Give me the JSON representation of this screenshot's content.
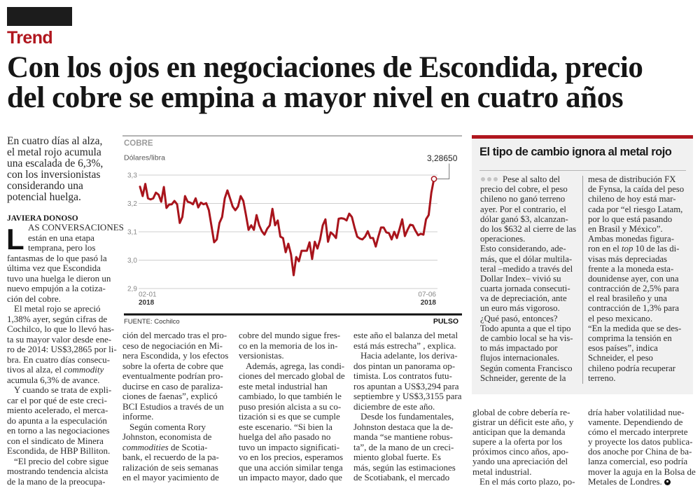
{
  "masthead": {
    "section": "Trend"
  },
  "headline": {
    "lines": [
      "Con los ojos en negociaciones de Escondida, precio",
      "del cobre se empina a mayor nivel en cuatro años"
    ]
  },
  "deck": [
    {
      "lines": [
        "En cuatro días al alza,",
        "el metal rojo acumula",
        "una escalada de 6,3%,",
        "con los inversionistas",
        "considerando una",
        "potencial huelga."
      ]
    }
  ],
  "byline": "JAVIERA DONOSO",
  "article": {
    "drop_cap": "L",
    "columns": [
      [
        {
          "dropcap": true,
          "lines": [
            "AS CONVERSACIONES",
            "están en una etapa",
            "temprana, pero los",
            "fantasmas de lo que pasó la",
            "última vez que Escondida",
            "tuvo una huelga le dieron un",
            "nuevo empujón a la cotiza-",
            "ción del cobre."
          ]
        },
        {
          "lines": [
            "El metal rojo se apreció",
            "1,38% ayer, según cifras de",
            "Cochilco, lo que lo llevó has-",
            "ta su mayor valor desde ene-",
            "ro de 2014: US$3,2865 por li-",
            "bra. En cuatro días consecu-",
            [
              {
                "t": "tivos al alza, el "
              },
              {
                "t": "commodity",
                "i": true
              }
            ],
            "acumula 6,3% de avance."
          ]
        },
        {
          "lines": [
            "Y cuando se trata de expli-",
            "car el por qué de este creci-",
            "miento acelerado, el merca-",
            "do apunta a la especulación",
            "en torno a las negociaciones",
            "con el sindicato de Minera",
            "Escondida, de HBP Billiton."
          ]
        },
        {
          "lines": [
            "“El precio del cobre sigue",
            "mostrando tendencia alcista",
            "de la mano de la preocupa-"
          ]
        }
      ],
      [
        {
          "cont": true,
          "lines": [
            "ción del mercado tras el pro-",
            "ceso de negociación en Mi-",
            "nera Escondida, y los efectos",
            "sobre la oferta de cobre que",
            "eventualmente podrían pro-",
            "ducirse en caso de paraliza-",
            "ciones de faenas”, explicó",
            "BCI Estudios a través de un",
            "informe."
          ]
        },
        {
          "lines": [
            "Según comenta Rory",
            "Johnston, economista de",
            [
              {
                "t": "commodities",
                "i": true
              },
              {
                "t": " de Scotia-"
              }
            ],
            "bank, el recuerdo de la pa-",
            "ralización de seis semanas",
            "en el mayor yacimiento de"
          ]
        }
      ],
      [
        {
          "cont": true,
          "lines": [
            "cobre del mundo sigue fres-",
            "co en la memoria de los in-",
            "versionistas."
          ]
        },
        {
          "lines": [
            "Además, agrega, las condi-",
            "ciones del mercado global de",
            "este metal industrial han",
            "cambiado, lo que también le",
            "puso presión alcista a su co-",
            "tización si es que se cumple",
            "este escenario. “Si bien la",
            "huelga del año pasado no",
            "tuvo un impacto significati-",
            "vo en los precios, esperamos",
            "que una acción similar tenga",
            "un impacto mayor, dado que"
          ]
        }
      ],
      [
        {
          "cont": true,
          "lines": [
            "este año el balanza del metal",
            "está más estrecha” , explica."
          ]
        },
        {
          "lines": [
            "Hacia adelante, los deriva-",
            "dos pintan un panorama op-",
            "timista. Los contratos futu-",
            "ros apuntan a US$3,294 para",
            "septiembre y US$3,3155 para",
            "diciembre de este año."
          ]
        },
        {
          "lines": [
            "Desde los fundamentales,",
            "Johnston destaca que la de-",
            "manda “se mantiene robus-",
            "ta”, de la mano de un creci-",
            "miento global fuerte. Es",
            "más, según las estimaciones",
            "de Scotiabank, el mercado"
          ]
        }
      ],
      [
        {
          "cont": true,
          "lines": [
            "global de cobre debería re-",
            "gistrar un déficit este año, y",
            "anticipan que la demanda",
            "supere a la oferta por los",
            "próximos cinco años, apo-",
            "yando una apreciación del",
            "metal industrial."
          ]
        },
        {
          "lines": [
            "En el más corto plazo, po-"
          ]
        }
      ],
      [
        {
          "cont": true,
          "lines": [
            "dría haber volatilidad nue-",
            "vamente. Dependiendo de",
            "cómo el mercado interprete",
            "y proyecte los datos publica-",
            "dos anoche por China de ba-",
            "lanza comercial, eso podría",
            "mover la aguja en la Bolsa de",
            [
              {
                "t": "Metales de Londres."
              },
              {
                "icon": "end-mark-icon"
              }
            ]
          ]
        }
      ]
    ]
  },
  "sidebar": {
    "title": "El tipo de cambio ignora al metal rojo",
    "lead_icon": "three-dots-icon",
    "columns": [
      [
        {
          "lead": true,
          "lines": [
            "Pese al salto del",
            "precio del cobre, el peso",
            "chileno no ganó terreno",
            "ayer. Por el contrario, el",
            "dólar ganó $3, alcanzan-",
            "do los $632 al cierre de las",
            "operaciones."
          ]
        },
        {
          "lines": [
            "Esto considerando, ade-",
            "más, que el dólar multila-",
            "teral –medido a través del",
            "Dollar Index– vivió su",
            "cuarta jornada consecuti-",
            "va de depreciación, ante",
            "un euro más vigoroso."
          ]
        },
        {
          "lines": [
            "¿Qué pasó, entonces?"
          ]
        },
        {
          "lines": [
            "Todo apunta a que el tipo",
            "de cambio local se ha vis-",
            "to más impactado por",
            "flujos internacionales."
          ]
        },
        {
          "lines": [
            "Según comenta Francisco",
            "Schneider, gerente de la"
          ]
        }
      ],
      [
        {
          "cont": true,
          "lines": [
            "mesa de distribución FX",
            "de Fynsa, la caída del peso",
            "chileno de hoy está mar-",
            "cada por “el riesgo Latam,",
            "por lo que está pasando",
            "en Brasil y México”."
          ]
        },
        {
          "lines": [
            "Ambas monedas figura-",
            [
              {
                "t": "ron en el "
              },
              {
                "t": "top",
                "i": true
              },
              {
                "t": " 10 de las di-"
              }
            ],
            "visas más depreciadas",
            "frente a la moneda esta-",
            "dounidense ayer, con una",
            "contracción de 2,5% para",
            "el real brasileño y una",
            "contracción de 1,3% para",
            "el peso mexicano."
          ]
        },
        {
          "lines": [
            "“En la medida que se des-",
            "comprima la tensión en",
            "esos países”, indica",
            "Schneider, el peso",
            "chileno podría recuperar",
            "terreno."
          ]
        }
      ]
    ]
  },
  "chart_data": {
    "type": "line",
    "title": "COBRE",
    "ylabel": "Dólares/libra",
    "xlabel": "",
    "ylim": [
      2.9,
      3.3
    ],
    "grid": true,
    "yticks": [
      {
        "value": 3.3,
        "label": "3,3"
      },
      {
        "value": 3.2,
        "label": "3,2"
      },
      {
        "value": 3.1,
        "label": "3,1"
      },
      {
        "value": 3.0,
        "label": "3,0"
      },
      {
        "value": 2.9,
        "label": "2,9"
      }
    ],
    "x_start": {
      "date": "02-01",
      "year": "2018"
    },
    "x_end": {
      "date": "07-06",
      "year": "2018"
    },
    "series": [
      {
        "name": "Cobre",
        "color": "#a8141c",
        "values": [
          3.259,
          3.226,
          3.269,
          3.218,
          3.214,
          3.218,
          3.238,
          3.231,
          3.206,
          3.258,
          3.184,
          3.196,
          3.197,
          3.209,
          3.197,
          3.131,
          3.152,
          3.226,
          3.206,
          3.203,
          3.197,
          3.218,
          3.186,
          3.203,
          3.197,
          3.201,
          3.176,
          3.119,
          3.063,
          3.073,
          3.131,
          3.152,
          3.218,
          3.246,
          3.218,
          3.189,
          3.176,
          3.189,
          3.226,
          3.209,
          3.159,
          3.107,
          3.123,
          3.107,
          3.159,
          3.123,
          3.102,
          3.09,
          3.11,
          3.123,
          3.181,
          3.123,
          3.14,
          3.083,
          3.078,
          3.028,
          3.058,
          3.021,
          2.947,
          3.011,
          2.996,
          3.033,
          3.033,
          3.033,
          3.063,
          3.004,
          3.065,
          3.041,
          3.073,
          3.123,
          3.144,
          3.065,
          3.098,
          3.09,
          3.078,
          3.146,
          3.148,
          3.146,
          3.14,
          3.164,
          3.152,
          3.115,
          3.083,
          3.076,
          3.073,
          3.083,
          3.102,
          3.078,
          3.078,
          3.048,
          3.083,
          3.115,
          3.115,
          3.098,
          3.095,
          3.073,
          3.1,
          3.078,
          3.11,
          3.144,
          3.085,
          3.107,
          3.125,
          3.123,
          3.104,
          3.088,
          3.093,
          3.09,
          3.144,
          3.159,
          3.238,
          3.2865
        ]
      }
    ],
    "annotation": {
      "label": "3,28650",
      "value": 3.2865,
      "point": "last"
    },
    "source": "FUENTE: Cochilco",
    "credit": "PULSO"
  },
  "colors": {
    "brand_red": "#b0161e",
    "series_line": "#a8141c",
    "sidebar_bg": "#f1f1f1"
  }
}
